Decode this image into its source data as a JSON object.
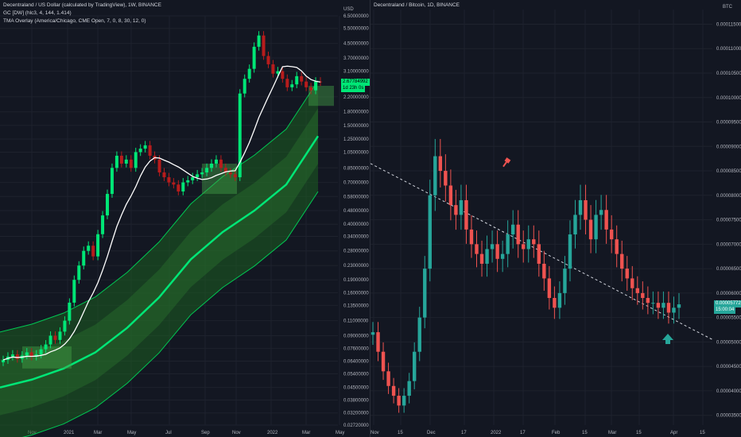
{
  "left": {
    "title": "Decentraland / US Dollar (calculated by TradingView), 1W, BINANCE",
    "indicators": [
      "GC [DW] (hlc3, 4, 144, 1.414)",
      "TMA Overlay (America/Chicago, CME Open, 7, 0, 8, 30, 12, 0)"
    ],
    "unit": "USD",
    "price_tag": "2.67784992",
    "timer_tag": "1d 23h 0s",
    "colors": {
      "up": "#00e676",
      "down": "#b71c1c",
      "band": "#1b5e20",
      "mid": "#00e676",
      "ma": "#ffffff"
    }
  },
  "right": {
    "title": "Decentraland / Bitcoin, 1D, BINANCE",
    "unit": "BTC",
    "price_tag": "0.00005772",
    "timer_tag": "15:00:04",
    "colors": {
      "up": "#26a69a",
      "down": "#ef5350",
      "trend": "#d1d4dc",
      "sell_marker": "#ef5350",
      "buy_marker": "#26a69a"
    }
  },
  "chart_data": [
    {
      "type": "candlestick",
      "title": "Decentraland / US Dollar (calculated by TradingView), 1W, BINANCE",
      "y_scale": "log",
      "y_ticks": [
        "6.50000000",
        "5.50000000",
        "4.50000000",
        "3.70000000",
        "3.10000000",
        "2.20000000",
        "1.80000000",
        "1.50000000",
        "1.25000000",
        "1.05000000",
        "0.85000000",
        "0.70000000",
        "0.58000000",
        "0.48000000",
        "0.40000000",
        "0.34000000",
        "0.28000000",
        "0.23000000",
        "0.19000000",
        "0.16000000",
        "0.13500000",
        "0.11000000",
        "0.09000000",
        "0.07600000",
        "0.06400000",
        "0.05400000",
        "0.04500000",
        "0.03800000",
        "0.03200000",
        "0.02720000"
      ],
      "x_ticks": [
        "Nov",
        "2021",
        "Mar",
        "May",
        "Jul",
        "Sep",
        "Nov",
        "2022",
        "Mar",
        "May"
      ],
      "close_path": [
        0.065,
        0.068,
        0.07,
        0.066,
        0.069,
        0.072,
        0.068,
        0.07,
        0.075,
        0.08,
        0.09,
        0.085,
        0.095,
        0.11,
        0.14,
        0.19,
        0.23,
        0.28,
        0.3,
        0.26,
        0.35,
        0.45,
        0.6,
        0.85,
        1.0,
        0.9,
        0.95,
        0.85,
        1.05,
        1.1,
        1.15,
        1.0,
        0.95,
        0.8,
        0.75,
        0.7,
        0.68,
        0.62,
        0.7,
        0.72,
        0.75,
        0.78,
        0.8,
        0.85,
        0.9,
        0.95,
        0.85,
        0.8,
        0.78,
        0.75,
        2.3,
        2.8,
        3.2,
        4.3,
        5.0,
        3.8,
        3.4,
        3.0,
        3.1,
        2.8,
        2.5,
        2.6,
        2.9,
        2.7,
        2.5,
        2.4,
        2.7,
        2.68
      ],
      "series": [
        {
          "name": "GC [DW] (hlc3, 4, 144, 1.414)",
          "kind": "band"
        },
        {
          "name": "TMA Overlay (America/Chicago, CME Open, 7, 0, 8, 30, 12, 0)",
          "kind": "boxes"
        }
      ],
      "last_price": "2.67784992"
    },
    {
      "type": "candlestick",
      "title": "Decentraland / Bitcoin, 1D, BINANCE",
      "y_scale": "linear",
      "y_ticks": [
        "0.00011500",
        "0.00011000",
        "0.00010500",
        "0.00010000",
        "0.00009500",
        "0.00009000",
        "0.00008500",
        "0.00008000",
        "0.00007500",
        "0.00007000",
        "0.00006500",
        "0.00006000",
        "0.00005500",
        "0.00005000",
        "0.00004500",
        "0.00004000",
        "0.00003500"
      ],
      "ylim": [
        3.3e-05,
        0.000118
      ],
      "x_ticks": [
        "Nov",
        "15",
        "Dec",
        "17",
        "2022",
        "17",
        "Feb",
        "15",
        "Mar",
        "15",
        "Apr",
        "15"
      ],
      "close_path": [
        5.2e-05,
        4.8e-05,
        4.4e-05,
        4.1e-05,
        3.9e-05,
        3.7e-05,
        3.9e-05,
        4.2e-05,
        4.8e-05,
        5.5e-05,
        6.5e-05,
        8e-05,
        8.8e-05,
        8.5e-05,
        8.2e-05,
        7.8e-05,
        7.6e-05,
        7.9e-05,
        7.3e-05,
        7e-05,
        6.8e-05,
        6.6e-05,
        6.9e-05,
        7e-05,
        6.7e-05,
        6.8e-05,
        7.2e-05,
        7.4e-05,
        7e-05,
        6.9e-05,
        7.1e-05,
        7e-05,
        6.6e-05,
        6.3e-05,
        5.9e-05,
        5.7e-05,
        6e-05,
        6.5e-05,
        7.2e-05,
        7.6e-05,
        7.9e-05,
        7.5e-05,
        7.1e-05,
        7.6e-05,
        7.7e-05,
        7.3e-05,
        7.1e-05,
        6.8e-05,
        6.5e-05,
        6.3e-05,
        6.1e-05,
        6e-05,
        5.9e-05,
        5.8e-05,
        5.8e-05,
        5.7e-05,
        5.8e-05,
        5.6e-05,
        5.7e-05,
        5.77e-05
      ],
      "series": [
        {
          "name": "Downtrend line",
          "kind": "dashed-line"
        }
      ],
      "last_price": "0.00005772"
    }
  ]
}
